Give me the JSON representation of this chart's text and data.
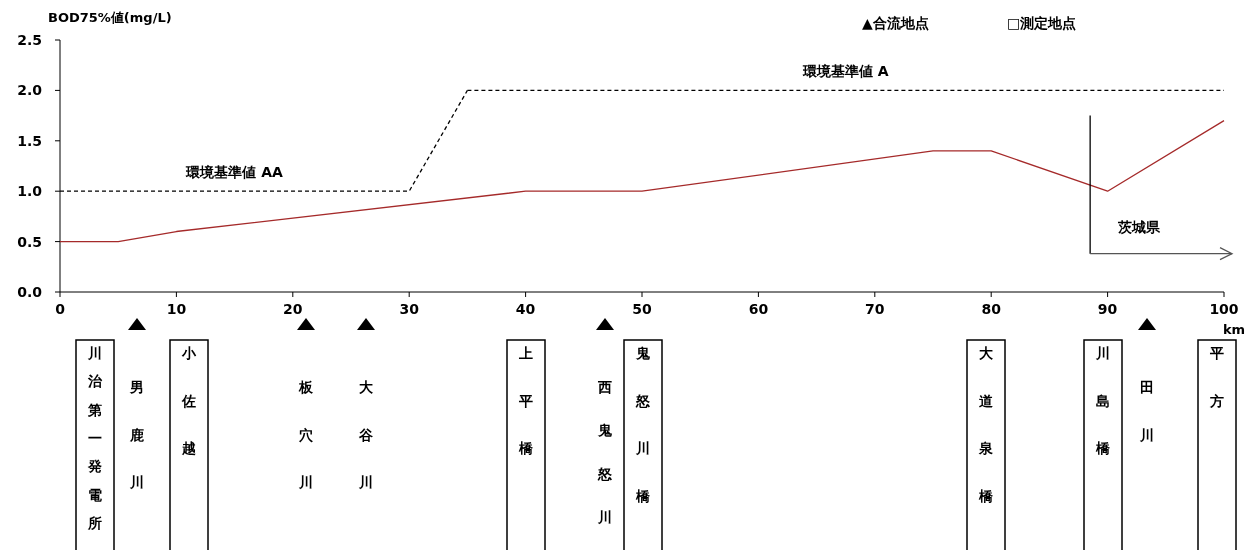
{
  "chart_data": {
    "type": "line",
    "ylabel": "BOD75%値(mg/L)",
    "xlabel": "km",
    "xlim": [
      0,
      100
    ],
    "xticks": [
      0,
      10,
      20,
      30,
      40,
      50,
      60,
      70,
      80,
      90,
      100
    ],
    "ylim": [
      0,
      2.5
    ],
    "yticks": [
      {
        "value": 0,
        "label": "0.0"
      },
      {
        "value": 0.5,
        "label": "0.5"
      },
      {
        "value": 1,
        "label": "1.0"
      },
      {
        "value": 1.5,
        "label": "1.5"
      },
      {
        "value": 2,
        "label": "2.0"
      },
      {
        "value": 2.5,
        "label": "2.5"
      }
    ],
    "series": [
      {
        "color": "#a52a2a",
        "line_style": "solid",
        "x": [
          0,
          5,
          10,
          40,
          50,
          75,
          80,
          90,
          100
        ],
        "values": [
          0.5,
          0.5,
          0.6,
          1.0,
          1.0,
          1.4,
          1.4,
          1.0,
          1.7
        ]
      },
      {
        "name": "環境基準値 AA",
        "color": "#000000",
        "line_style": "dashed",
        "x": [
          0,
          30,
          35
        ],
        "values": [
          1,
          1,
          2
        ]
      },
      {
        "name": "環境基準値 A",
        "color": "#000000",
        "line_style": "dashed",
        "x": [
          35,
          100
        ],
        "values": [
          2,
          2
        ]
      }
    ],
    "ref_lines": [
      {
        "axis": "x",
        "value": 88.5,
        "label": "茨城県"
      }
    ],
    "annotations": [
      "▲合流地点",
      "□測定地点",
      "川治第一発電所",
      "男鹿川",
      "小佐越",
      "板穴川",
      "大谷川",
      "上平橋",
      "西鬼怒川",
      "鬼怒川橋",
      "大道泉橋",
      "川島橋",
      "田川",
      "平方"
    ]
  }
}
